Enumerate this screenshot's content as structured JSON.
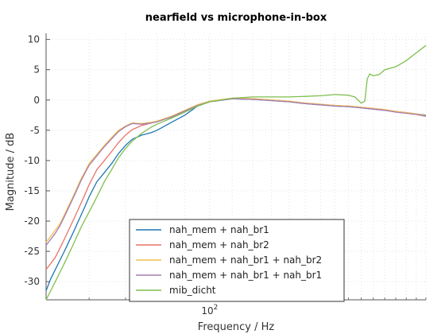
{
  "chart_data": {
    "type": "line",
    "title": "nearfield vs microphone-in-box",
    "xlabel": "Frequency / Hz",
    "ylabel": "Magnitude / dB",
    "xscale": "log",
    "xlim": [
      50,
      250
    ],
    "ylim": [
      -33,
      11
    ],
    "yticks": [
      10,
      5,
      0,
      -5,
      -10,
      -15,
      -20,
      -25,
      -30
    ],
    "xticks": [
      {
        "value": 100,
        "label": "10",
        "exponent": "2"
      }
    ],
    "grid": true,
    "legend_position": "bottom-center",
    "series": [
      {
        "name": "nah_mem + nah_br1",
        "color": "#1f77b4",
        "x": [
          50,
          51,
          52,
          53,
          54,
          55,
          56,
          57,
          58,
          59,
          60,
          62,
          64,
          66,
          68,
          70,
          72,
          75,
          78,
          80,
          85,
          90,
          95,
          100,
          110,
          120,
          130,
          140,
          150,
          160,
          170,
          180,
          190,
          200,
          210,
          220,
          230,
          240,
          250
        ],
        "y": [
          -31.5,
          -29.5,
          -28.0,
          -26.5,
          -25.0,
          -23.5,
          -22.0,
          -20.5,
          -19.0,
          -17.5,
          -16.0,
          -13.5,
          -12.0,
          -10.5,
          -8.8,
          -7.5,
          -6.5,
          -5.8,
          -5.4,
          -5.0,
          -3.7,
          -2.5,
          -1.0,
          -0.3,
          0.2,
          0.1,
          -0.1,
          -0.3,
          -0.6,
          -0.8,
          -1.0,
          -1.1,
          -1.3,
          -1.5,
          -1.7,
          -1.9,
          -2.1,
          -2.3,
          -2.5
        ]
      },
      {
        "name": "nah_mem + nah_br2",
        "color": "#e8746a",
        "x": [
          50,
          51,
          52,
          53,
          54,
          55,
          56,
          57,
          58,
          59,
          60,
          62,
          64,
          66,
          68,
          70,
          72,
          75,
          78,
          80,
          85,
          90,
          95,
          100,
          110,
          120,
          130,
          140,
          150,
          160,
          170,
          180,
          190,
          200,
          210,
          220,
          230,
          240,
          250
        ],
        "y": [
          -28.0,
          -27.0,
          -26.0,
          -24.5,
          -23.0,
          -21.5,
          -20.0,
          -18.5,
          -17.0,
          -15.5,
          -14.0,
          -11.5,
          -10.0,
          -8.5,
          -7.0,
          -5.8,
          -4.9,
          -4.2,
          -3.8,
          -3.5,
          -2.8,
          -1.8,
          -0.8,
          -0.2,
          0.3,
          0.2,
          0.0,
          -0.2,
          -0.5,
          -0.7,
          -0.9,
          -1.0,
          -1.2,
          -1.4,
          -1.6,
          -1.9,
          -2.1,
          -2.3,
          -2.6
        ]
      },
      {
        "name": "nah_mem + nah_br1 + nah_br2",
        "color": "#f2c14e",
        "x": [
          50,
          51,
          52,
          53,
          54,
          55,
          56,
          57,
          58,
          59,
          60,
          62,
          64,
          66,
          68,
          70,
          72,
          75,
          78,
          80,
          85,
          90,
          95,
          100,
          110,
          120,
          130,
          140,
          150,
          160,
          170,
          180,
          190,
          200,
          210,
          220,
          230,
          240,
          250
        ],
        "y": [
          -23.5,
          -22.5,
          -21.5,
          -20.5,
          -19.0,
          -17.5,
          -16.0,
          -14.5,
          -13.0,
          -11.8,
          -10.5,
          -9.0,
          -7.5,
          -6.2,
          -5.0,
          -4.3,
          -3.8,
          -3.9,
          -3.7,
          -3.5,
          -2.7,
          -1.7,
          -0.8,
          -0.2,
          0.3,
          0.2,
          0.0,
          -0.2,
          -0.5,
          -0.7,
          -0.9,
          -1.0,
          -1.2,
          -1.4,
          -1.6,
          -1.9,
          -2.1,
          -2.3,
          -2.6
        ]
      },
      {
        "name": "nah_mem + nah_br1 + nah_br1",
        "color": "#a67cb0",
        "x": [
          50,
          51,
          52,
          53,
          54,
          55,
          56,
          57,
          58,
          59,
          60,
          62,
          64,
          66,
          68,
          70,
          72,
          75,
          78,
          80,
          85,
          90,
          95,
          100,
          110,
          120,
          130,
          140,
          150,
          160,
          170,
          180,
          190,
          200,
          210,
          220,
          230,
          240,
          250
        ],
        "y": [
          -24.0,
          -23.0,
          -22.0,
          -20.8,
          -19.3,
          -17.8,
          -16.3,
          -14.8,
          -13.3,
          -12.0,
          -10.8,
          -9.2,
          -7.7,
          -6.4,
          -5.2,
          -4.4,
          -3.9,
          -4.0,
          -3.8,
          -3.6,
          -2.8,
          -1.8,
          -0.9,
          -0.3,
          0.2,
          0.1,
          -0.1,
          -0.3,
          -0.6,
          -0.8,
          -1.0,
          -1.1,
          -1.3,
          -1.5,
          -1.7,
          -2.0,
          -2.2,
          -2.4,
          -2.7
        ]
      },
      {
        "name": "mib_dicht",
        "color": "#7fbf4d",
        "x": [
          50,
          52,
          54,
          56,
          58,
          60,
          62,
          64,
          66,
          68,
          70,
          72,
          75,
          78,
          80,
          85,
          90,
          95,
          100,
          110,
          120,
          130,
          140,
          150,
          160,
          170,
          180,
          185,
          190,
          193,
          195,
          197,
          200,
          205,
          210,
          220,
          230,
          240,
          250
        ],
        "y": [
          -33.0,
          -30.0,
          -27.0,
          -24.0,
          -21.0,
          -18.5,
          -16.0,
          -13.5,
          -11.5,
          -9.5,
          -8.0,
          -6.8,
          -5.5,
          -4.5,
          -4.0,
          -3.0,
          -2.0,
          -1.0,
          -0.3,
          0.3,
          0.5,
          0.5,
          0.5,
          0.6,
          0.7,
          0.9,
          0.8,
          0.5,
          -0.5,
          -0.2,
          3.5,
          4.3,
          4.0,
          4.2,
          5.0,
          5.5,
          6.5,
          7.8,
          9.0
        ]
      }
    ]
  }
}
